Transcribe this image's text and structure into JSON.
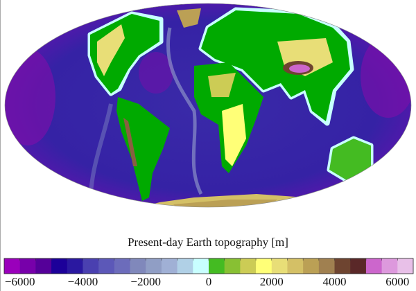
{
  "title": "Present-day Earth topography [m]",
  "projection": "mollweide",
  "colorbar": {
    "min": -6500,
    "max": 6500,
    "step": 500,
    "ticks": [
      "−6000",
      "−4000",
      "−2000",
      "0",
      "2000",
      "4000",
      "6000"
    ],
    "tick_values": [
      -6000,
      -4000,
      -2000,
      0,
      2000,
      4000,
      6000
    ],
    "colors": [
      "#9a00bb",
      "#7700aa",
      "#550099",
      "#1c0099",
      "#2a18a0",
      "#3a2aa8",
      "#4a40b0",
      "#5c58b8",
      "#6c6cbb",
      "#8088bb",
      "#909ec5",
      "#a0b0d5",
      "#b0d0e6",
      "#c8ffff",
      "#00aa00",
      "#44bb22",
      "#88c033",
      "#cccc55",
      "#ffff77",
      "#e8de77",
      "#d4c066",
      "#bba055",
      "#a08050",
      "#886040",
      "#6e4430",
      "#5a2828",
      "#cc66cc",
      "#dd99dd",
      "#e8c0e8"
    ]
  },
  "colors": {
    "ocean_deep": "#4a18a8",
    "ocean": "#3a2aa8",
    "shelf": "#c8ffff",
    "lowland": "#00aa00",
    "upland": "#e8de77",
    "mountain": "#886040",
    "peak": "#cc66cc"
  }
}
